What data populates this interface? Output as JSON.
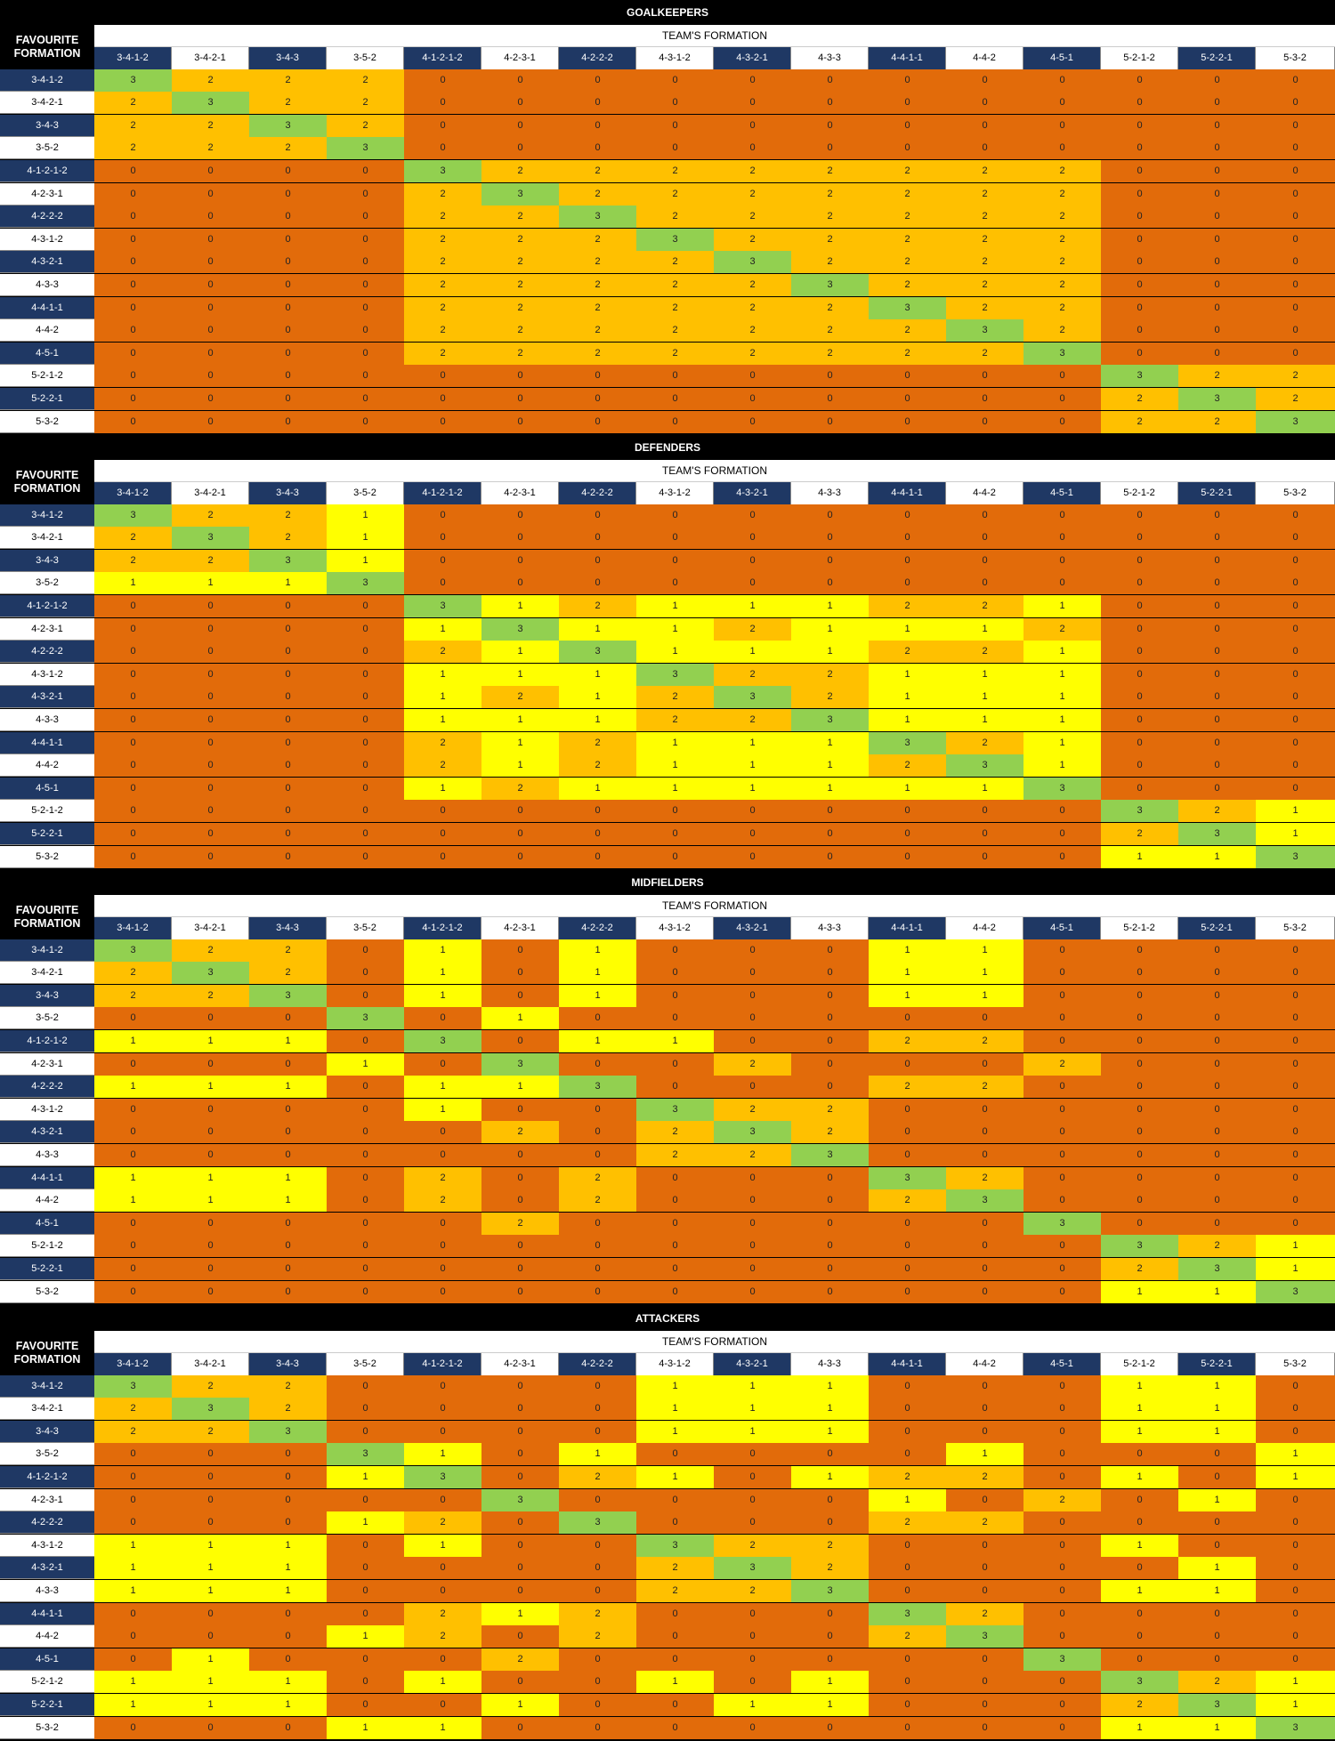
{
  "labels": {
    "favourite": "FAVOURITE FORMATION",
    "team": "TEAM'S FORMATION"
  },
  "formations": [
    "3-4-1-2",
    "3-4-2-1",
    "3-4-3",
    "3-5-2",
    "4-1-2-1-2",
    "4-2-3-1",
    "4-2-2-2",
    "4-3-1-2",
    "4-3-2-1",
    "4-3-3",
    "4-4-1-1",
    "4-4-2",
    "4-5-1",
    "5-2-1-2",
    "5-2-2-1",
    "5-3-2"
  ],
  "colors": {
    "v0": "#e26b0a",
    "v1": "#ffff00",
    "v2": "#ffc000",
    "v3": "#92d050",
    "header_dark": "#1f3864"
  },
  "sections": [
    {
      "title": "GOALKEEPERS",
      "matrix": [
        [
          3,
          2,
          2,
          2,
          0,
          0,
          0,
          0,
          0,
          0,
          0,
          0,
          0,
          0,
          0,
          0
        ],
        [
          2,
          3,
          2,
          2,
          0,
          0,
          0,
          0,
          0,
          0,
          0,
          0,
          0,
          0,
          0,
          0
        ],
        [
          2,
          2,
          3,
          2,
          0,
          0,
          0,
          0,
          0,
          0,
          0,
          0,
          0,
          0,
          0,
          0
        ],
        [
          2,
          2,
          2,
          3,
          0,
          0,
          0,
          0,
          0,
          0,
          0,
          0,
          0,
          0,
          0,
          0
        ],
        [
          0,
          0,
          0,
          0,
          3,
          2,
          2,
          2,
          2,
          2,
          2,
          2,
          2,
          0,
          0,
          0
        ],
        [
          0,
          0,
          0,
          0,
          2,
          3,
          2,
          2,
          2,
          2,
          2,
          2,
          2,
          0,
          0,
          0
        ],
        [
          0,
          0,
          0,
          0,
          2,
          2,
          3,
          2,
          2,
          2,
          2,
          2,
          2,
          0,
          0,
          0
        ],
        [
          0,
          0,
          0,
          0,
          2,
          2,
          2,
          3,
          2,
          2,
          2,
          2,
          2,
          0,
          0,
          0
        ],
        [
          0,
          0,
          0,
          0,
          2,
          2,
          2,
          2,
          3,
          2,
          2,
          2,
          2,
          0,
          0,
          0
        ],
        [
          0,
          0,
          0,
          0,
          2,
          2,
          2,
          2,
          2,
          3,
          2,
          2,
          2,
          0,
          0,
          0
        ],
        [
          0,
          0,
          0,
          0,
          2,
          2,
          2,
          2,
          2,
          2,
          3,
          2,
          2,
          0,
          0,
          0
        ],
        [
          0,
          0,
          0,
          0,
          2,
          2,
          2,
          2,
          2,
          2,
          2,
          3,
          2,
          0,
          0,
          0
        ],
        [
          0,
          0,
          0,
          0,
          2,
          2,
          2,
          2,
          2,
          2,
          2,
          2,
          3,
          0,
          0,
          0
        ],
        [
          0,
          0,
          0,
          0,
          0,
          0,
          0,
          0,
          0,
          0,
          0,
          0,
          0,
          3,
          2,
          2
        ],
        [
          0,
          0,
          0,
          0,
          0,
          0,
          0,
          0,
          0,
          0,
          0,
          0,
          0,
          2,
          3,
          2
        ],
        [
          0,
          0,
          0,
          0,
          0,
          0,
          0,
          0,
          0,
          0,
          0,
          0,
          0,
          2,
          2,
          3
        ]
      ]
    },
    {
      "title": "DEFENDERS",
      "matrix": [
        [
          3,
          2,
          2,
          1,
          0,
          0,
          0,
          0,
          0,
          0,
          0,
          0,
          0,
          0,
          0,
          0
        ],
        [
          2,
          3,
          2,
          1,
          0,
          0,
          0,
          0,
          0,
          0,
          0,
          0,
          0,
          0,
          0,
          0
        ],
        [
          2,
          2,
          3,
          1,
          0,
          0,
          0,
          0,
          0,
          0,
          0,
          0,
          0,
          0,
          0,
          0
        ],
        [
          1,
          1,
          1,
          3,
          0,
          0,
          0,
          0,
          0,
          0,
          0,
          0,
          0,
          0,
          0,
          0
        ],
        [
          0,
          0,
          0,
          0,
          3,
          1,
          2,
          1,
          1,
          1,
          2,
          2,
          1,
          0,
          0,
          0
        ],
        [
          0,
          0,
          0,
          0,
          1,
          3,
          1,
          1,
          2,
          1,
          1,
          1,
          2,
          0,
          0,
          0
        ],
        [
          0,
          0,
          0,
          0,
          2,
          1,
          3,
          1,
          1,
          1,
          2,
          2,
          1,
          0,
          0,
          0
        ],
        [
          0,
          0,
          0,
          0,
          1,
          1,
          1,
          3,
          2,
          2,
          1,
          1,
          1,
          0,
          0,
          0
        ],
        [
          0,
          0,
          0,
          0,
          1,
          2,
          1,
          2,
          3,
          2,
          1,
          1,
          1,
          0,
          0,
          0
        ],
        [
          0,
          0,
          0,
          0,
          1,
          1,
          1,
          2,
          2,
          3,
          1,
          1,
          1,
          0,
          0,
          0
        ],
        [
          0,
          0,
          0,
          0,
          2,
          1,
          2,
          1,
          1,
          1,
          3,
          2,
          1,
          0,
          0,
          0
        ],
        [
          0,
          0,
          0,
          0,
          2,
          1,
          2,
          1,
          1,
          1,
          2,
          3,
          1,
          0,
          0,
          0
        ],
        [
          0,
          0,
          0,
          0,
          1,
          2,
          1,
          1,
          1,
          1,
          1,
          1,
          3,
          0,
          0,
          0
        ],
        [
          0,
          0,
          0,
          0,
          0,
          0,
          0,
          0,
          0,
          0,
          0,
          0,
          0,
          3,
          2,
          1
        ],
        [
          0,
          0,
          0,
          0,
          0,
          0,
          0,
          0,
          0,
          0,
          0,
          0,
          0,
          2,
          3,
          1
        ],
        [
          0,
          0,
          0,
          0,
          0,
          0,
          0,
          0,
          0,
          0,
          0,
          0,
          0,
          1,
          1,
          3
        ]
      ]
    },
    {
      "title": "MIDFIELDERS",
      "matrix": [
        [
          3,
          2,
          2,
          0,
          1,
          0,
          1,
          0,
          0,
          0,
          1,
          1,
          0,
          0,
          0,
          0
        ],
        [
          2,
          3,
          2,
          0,
          1,
          0,
          1,
          0,
          0,
          0,
          1,
          1,
          0,
          0,
          0,
          0
        ],
        [
          2,
          2,
          3,
          0,
          1,
          0,
          1,
          0,
          0,
          0,
          1,
          1,
          0,
          0,
          0,
          0
        ],
        [
          0,
          0,
          0,
          3,
          0,
          1,
          0,
          0,
          0,
          0,
          0,
          0,
          0,
          0,
          0,
          0
        ],
        [
          1,
          1,
          1,
          0,
          3,
          0,
          1,
          1,
          0,
          0,
          2,
          2,
          0,
          0,
          0,
          0
        ],
        [
          0,
          0,
          0,
          1,
          0,
          3,
          0,
          0,
          2,
          0,
          0,
          0,
          2,
          0,
          0,
          0
        ],
        [
          1,
          1,
          1,
          0,
          1,
          1,
          3,
          0,
          0,
          0,
          2,
          2,
          0,
          0,
          0,
          0
        ],
        [
          0,
          0,
          0,
          0,
          1,
          0,
          0,
          3,
          2,
          2,
          0,
          0,
          0,
          0,
          0,
          0
        ],
        [
          0,
          0,
          0,
          0,
          0,
          2,
          0,
          2,
          3,
          2,
          0,
          0,
          0,
          0,
          0,
          0
        ],
        [
          0,
          0,
          0,
          0,
          0,
          0,
          0,
          2,
          2,
          3,
          0,
          0,
          0,
          0,
          0,
          0
        ],
        [
          1,
          1,
          1,
          0,
          2,
          0,
          2,
          0,
          0,
          0,
          3,
          2,
          0,
          0,
          0,
          0
        ],
        [
          1,
          1,
          1,
          0,
          2,
          0,
          2,
          0,
          0,
          0,
          2,
          3,
          0,
          0,
          0,
          0
        ],
        [
          0,
          0,
          0,
          0,
          0,
          2,
          0,
          0,
          0,
          0,
          0,
          0,
          3,
          0,
          0,
          0
        ],
        [
          0,
          0,
          0,
          0,
          0,
          0,
          0,
          0,
          0,
          0,
          0,
          0,
          0,
          3,
          2,
          1
        ],
        [
          0,
          0,
          0,
          0,
          0,
          0,
          0,
          0,
          0,
          0,
          0,
          0,
          0,
          2,
          3,
          1
        ],
        [
          0,
          0,
          0,
          0,
          0,
          0,
          0,
          0,
          0,
          0,
          0,
          0,
          0,
          1,
          1,
          3
        ]
      ]
    },
    {
      "title": "ATTACKERS",
      "matrix": [
        [
          3,
          2,
          2,
          0,
          0,
          0,
          0,
          1,
          1,
          1,
          0,
          0,
          0,
          1,
          1,
          0
        ],
        [
          2,
          3,
          2,
          0,
          0,
          0,
          0,
          1,
          1,
          1,
          0,
          0,
          0,
          1,
          1,
          0
        ],
        [
          2,
          2,
          3,
          0,
          0,
          0,
          0,
          1,
          1,
          1,
          0,
          0,
          0,
          1,
          1,
          0
        ],
        [
          0,
          0,
          0,
          3,
          1,
          0,
          1,
          0,
          0,
          0,
          0,
          1,
          0,
          0,
          0,
          1
        ],
        [
          0,
          0,
          0,
          1,
          3,
          0,
          2,
          1,
          0,
          1,
          2,
          2,
          0,
          1,
          0,
          1
        ],
        [
          0,
          0,
          0,
          0,
          0,
          3,
          0,
          0,
          0,
          0,
          1,
          0,
          2,
          0,
          1,
          0
        ],
        [
          0,
          0,
          0,
          1,
          2,
          0,
          3,
          0,
          0,
          0,
          2,
          2,
          0,
          0,
          0,
          0
        ],
        [
          1,
          1,
          1,
          0,
          1,
          0,
          0,
          3,
          2,
          2,
          0,
          0,
          0,
          1,
          0,
          0
        ],
        [
          1,
          1,
          1,
          0,
          0,
          0,
          0,
          2,
          3,
          2,
          0,
          0,
          0,
          0,
          1,
          0
        ],
        [
          1,
          1,
          1,
          0,
          0,
          0,
          0,
          2,
          2,
          3,
          0,
          0,
          0,
          1,
          1,
          0
        ],
        [
          0,
          0,
          0,
          0,
          2,
          1,
          2,
          0,
          0,
          0,
          3,
          2,
          0,
          0,
          0,
          0
        ],
        [
          0,
          0,
          0,
          1,
          2,
          0,
          2,
          0,
          0,
          0,
          2,
          3,
          0,
          0,
          0,
          0
        ],
        [
          0,
          1,
          0,
          0,
          0,
          2,
          0,
          0,
          0,
          0,
          0,
          0,
          3,
          0,
          0,
          0
        ],
        [
          1,
          1,
          1,
          0,
          1,
          0,
          0,
          1,
          0,
          1,
          0,
          0,
          0,
          3,
          2,
          1
        ],
        [
          1,
          1,
          1,
          0,
          0,
          1,
          0,
          0,
          1,
          1,
          0,
          0,
          0,
          2,
          3,
          1
        ],
        [
          0,
          0,
          0,
          1,
          1,
          0,
          0,
          0,
          0,
          0,
          0,
          0,
          0,
          1,
          1,
          3
        ]
      ]
    }
  ]
}
